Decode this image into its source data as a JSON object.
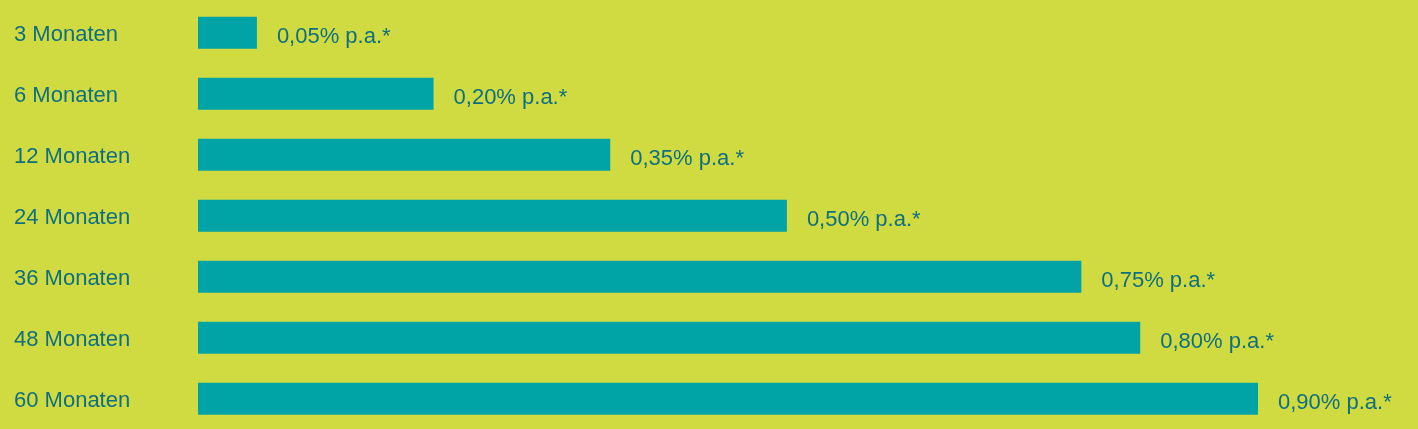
{
  "chart_data": {
    "type": "bar",
    "orientation": "horizontal",
    "categories": [
      "3 Monaten",
      "6 Monaten",
      "12 Monaten",
      "24 Monaten",
      "36 Monaten",
      "48 Monaten",
      "60 Monaten"
    ],
    "values": [
      0.05,
      0.2,
      0.35,
      0.5,
      0.75,
      0.8,
      0.9
    ],
    "value_labels": [
      "0,05% p.a.*",
      "0,20% p.a.*",
      "0,35% p.a.*",
      "0,50% p.a.*",
      "0,75% p.a.*",
      "0,80% p.a.*",
      "0,90% p.a.*"
    ],
    "color": "#00a3a6",
    "grid": false,
    "legend": false
  }
}
